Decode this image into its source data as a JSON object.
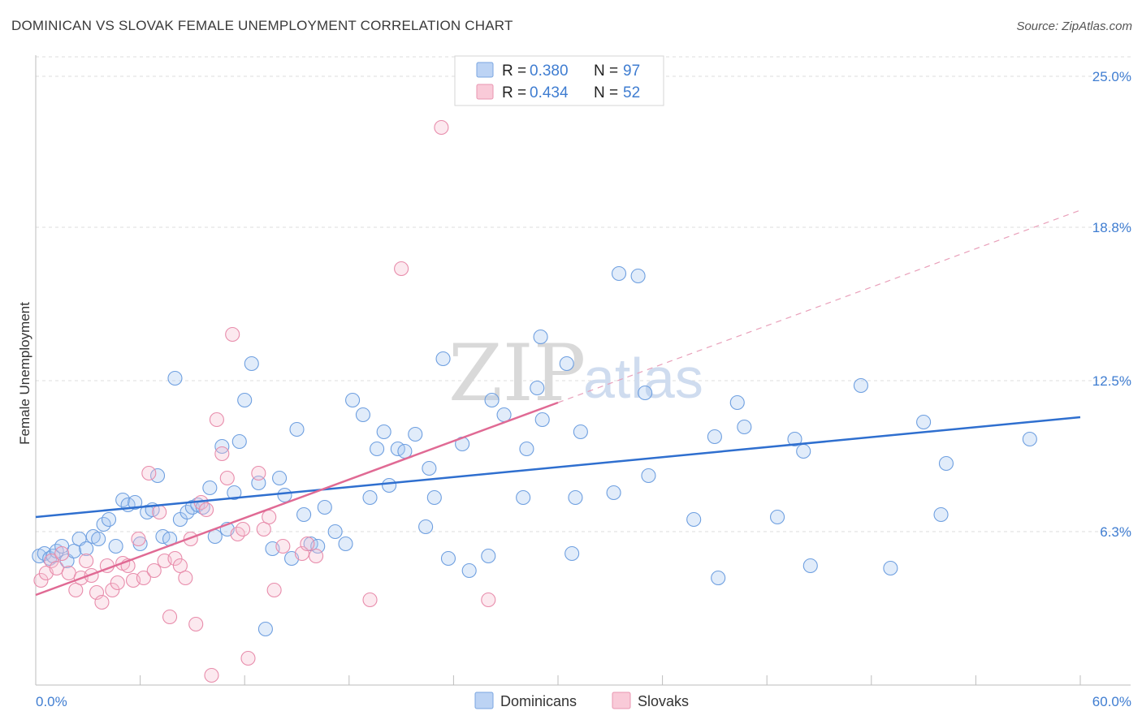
{
  "title": "DOMINICAN VS SLOVAK FEMALE UNEMPLOYMENT CORRELATION CHART",
  "source": "Source: ZipAtlas.com",
  "colors": {
    "blue": "#3f7dd1",
    "pink": "#e07098",
    "blue_fill": "#a9c8f0",
    "pink_fill": "#f6bfd0"
  },
  "watermark": {
    "zip": "ZIP",
    "atlas": "atlas"
  },
  "chart_data": {
    "type": "scatter",
    "title": "DOMINICAN VS SLOVAK FEMALE UNEMPLOYMENT CORRELATION CHART",
    "xlabel": "",
    "ylabel": "Female Unemployment",
    "xlim": [
      0,
      60
    ],
    "ylim": [
      0,
      25.8
    ],
    "x_tick_labels": [
      "0.0%",
      "60.0%"
    ],
    "y_ticks": [
      6.3,
      12.5,
      18.8,
      25.0
    ],
    "y_tick_labels": [
      "6.3%",
      "12.5%",
      "18.8%",
      "25.0%"
    ],
    "grid": true,
    "legend": [
      {
        "r_label": "R =",
        "r": "0.380",
        "n_label": "N =",
        "n": "97"
      },
      {
        "r_label": "R =",
        "r": "0.434",
        "n_label": "N =",
        "n": "52"
      }
    ],
    "series": [
      {
        "name": "Dominicans",
        "color": "#3f7dd1",
        "trend": {
          "x0": 0,
          "y0": 6.9,
          "x1": 60,
          "y1": 11.0
        },
        "points": [
          [
            0.2,
            5.3
          ],
          [
            0.5,
            5.4
          ],
          [
            0.8,
            5.2
          ],
          [
            1.0,
            5.3
          ],
          [
            1.2,
            5.5
          ],
          [
            1.5,
            5.7
          ],
          [
            1.8,
            5.1
          ],
          [
            2.2,
            5.5
          ],
          [
            2.5,
            6.0
          ],
          [
            2.9,
            5.6
          ],
          [
            3.3,
            6.1
          ],
          [
            3.6,
            6.0
          ],
          [
            3.9,
            6.6
          ],
          [
            4.2,
            6.8
          ],
          [
            4.6,
            5.7
          ],
          [
            5.0,
            7.6
          ],
          [
            5.3,
            7.4
          ],
          [
            5.7,
            7.5
          ],
          [
            6.0,
            5.8
          ],
          [
            6.4,
            7.1
          ],
          [
            6.7,
            7.2
          ],
          [
            7.0,
            8.6
          ],
          [
            7.3,
            6.1
          ],
          [
            7.7,
            6.0
          ],
          [
            8.0,
            12.6
          ],
          [
            8.3,
            6.8
          ],
          [
            8.7,
            7.1
          ],
          [
            9.0,
            7.3
          ],
          [
            9.3,
            7.4
          ],
          [
            9.6,
            7.3
          ],
          [
            10.0,
            8.1
          ],
          [
            10.3,
            6.1
          ],
          [
            10.7,
            9.8
          ],
          [
            11.0,
            6.4
          ],
          [
            11.4,
            7.9
          ],
          [
            11.7,
            10.0
          ],
          [
            12.0,
            11.7
          ],
          [
            12.4,
            13.2
          ],
          [
            12.8,
            8.3
          ],
          [
            13.2,
            2.3
          ],
          [
            13.6,
            5.6
          ],
          [
            14.0,
            8.5
          ],
          [
            14.3,
            7.8
          ],
          [
            14.7,
            5.2
          ],
          [
            15.0,
            10.5
          ],
          [
            15.4,
            7.0
          ],
          [
            15.8,
            5.8
          ],
          [
            16.2,
            5.7
          ],
          [
            16.6,
            7.3
          ],
          [
            17.2,
            6.3
          ],
          [
            17.8,
            5.8
          ],
          [
            18.2,
            11.7
          ],
          [
            18.8,
            11.1
          ],
          [
            19.2,
            7.7
          ],
          [
            19.6,
            9.7
          ],
          [
            20.0,
            10.4
          ],
          [
            20.3,
            8.2
          ],
          [
            20.8,
            9.7
          ],
          [
            21.2,
            9.6
          ],
          [
            21.8,
            10.3
          ],
          [
            22.4,
            6.5
          ],
          [
            22.6,
            8.9
          ],
          [
            22.9,
            7.7
          ],
          [
            23.4,
            13.4
          ],
          [
            23.7,
            5.2
          ],
          [
            24.5,
            9.9
          ],
          [
            24.9,
            4.7
          ],
          [
            26.0,
            5.3
          ],
          [
            26.2,
            11.7
          ],
          [
            26.9,
            11.1
          ],
          [
            28.0,
            7.7
          ],
          [
            28.2,
            9.7
          ],
          [
            28.8,
            12.2
          ],
          [
            29.0,
            14.3
          ],
          [
            29.1,
            10.9
          ],
          [
            30.5,
            13.2
          ],
          [
            30.8,
            5.4
          ],
          [
            31.0,
            7.7
          ],
          [
            31.3,
            10.4
          ],
          [
            33.2,
            7.9
          ],
          [
            33.5,
            16.9
          ],
          [
            34.6,
            16.8
          ],
          [
            35.0,
            12.0
          ],
          [
            35.2,
            8.6
          ],
          [
            37.8,
            6.8
          ],
          [
            39.0,
            10.2
          ],
          [
            39.2,
            4.4
          ],
          [
            40.3,
            11.6
          ],
          [
            40.7,
            10.6
          ],
          [
            42.6,
            6.9
          ],
          [
            43.6,
            10.1
          ],
          [
            44.1,
            9.6
          ],
          [
            44.5,
            4.9
          ],
          [
            47.4,
            12.3
          ],
          [
            49.1,
            4.8
          ],
          [
            51.0,
            10.8
          ],
          [
            52.0,
            7.0
          ],
          [
            52.3,
            9.1
          ],
          [
            57.1,
            10.1
          ]
        ]
      },
      {
        "name": "Slovaks",
        "color": "#e07098",
        "trend": {
          "x0": 0,
          "y0": 3.7,
          "x1": 30,
          "y1": 11.6
        },
        "trend_extension": {
          "x0": 30,
          "y0": 11.6,
          "x1": 60,
          "y1": 19.5
        },
        "points": [
          [
            0.3,
            4.3
          ],
          [
            0.6,
            4.6
          ],
          [
            0.9,
            5.1
          ],
          [
            1.2,
            4.8
          ],
          [
            1.5,
            5.4
          ],
          [
            1.9,
            4.6
          ],
          [
            2.3,
            3.9
          ],
          [
            2.6,
            4.4
          ],
          [
            2.9,
            5.1
          ],
          [
            3.2,
            4.5
          ],
          [
            3.5,
            3.8
          ],
          [
            3.8,
            3.4
          ],
          [
            4.1,
            4.9
          ],
          [
            4.4,
            3.9
          ],
          [
            4.7,
            4.2
          ],
          [
            5.0,
            5.0
          ],
          [
            5.3,
            4.9
          ],
          [
            5.6,
            4.3
          ],
          [
            5.9,
            6.0
          ],
          [
            6.2,
            4.4
          ],
          [
            6.5,
            8.7
          ],
          [
            6.8,
            4.7
          ],
          [
            7.1,
            7.1
          ],
          [
            7.4,
            5.1
          ],
          [
            7.7,
            2.8
          ],
          [
            8.0,
            5.2
          ],
          [
            8.3,
            4.9
          ],
          [
            8.6,
            4.4
          ],
          [
            8.9,
            6.0
          ],
          [
            9.2,
            2.5
          ],
          [
            9.5,
            7.5
          ],
          [
            9.8,
            7.2
          ],
          [
            10.1,
            0.4
          ],
          [
            10.4,
            10.9
          ],
          [
            10.7,
            9.5
          ],
          [
            11.0,
            8.5
          ],
          [
            11.3,
            14.4
          ],
          [
            11.6,
            6.2
          ],
          [
            11.9,
            6.4
          ],
          [
            12.2,
            1.1
          ],
          [
            12.8,
            8.7
          ],
          [
            13.1,
            6.4
          ],
          [
            13.4,
            6.9
          ],
          [
            13.7,
            3.9
          ],
          [
            14.2,
            5.7
          ],
          [
            15.3,
            5.4
          ],
          [
            15.6,
            5.8
          ],
          [
            16.1,
            5.3
          ],
          [
            19.2,
            3.5
          ],
          [
            21.0,
            17.1
          ],
          [
            23.3,
            22.9
          ],
          [
            26.0,
            3.5
          ]
        ]
      }
    ]
  },
  "bottom_legend": [
    "Dominicans",
    "Slovaks"
  ]
}
